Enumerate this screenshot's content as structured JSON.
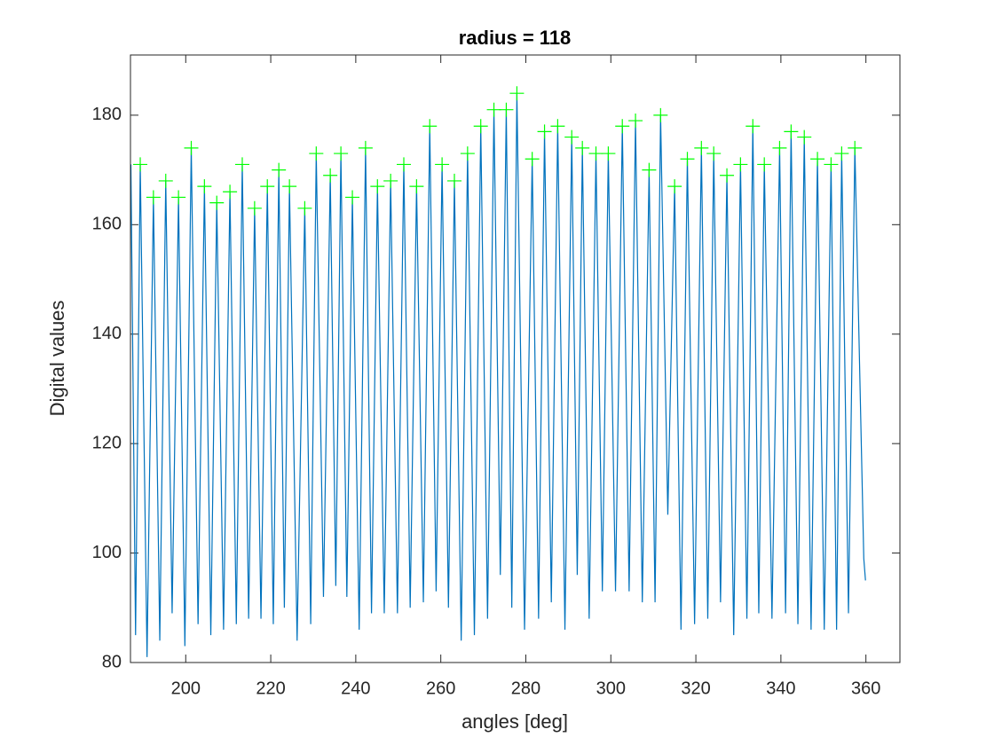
{
  "chart_data": {
    "type": "line",
    "title": "radius = 118",
    "x_label": "angles [deg]",
    "y_label": "Digital values",
    "xlim": [
      187,
      368
    ],
    "ylim": [
      80,
      191
    ],
    "xticks": [
      200,
      220,
      240,
      260,
      280,
      300,
      320,
      340,
      360
    ],
    "yticks": [
      80,
      100,
      120,
      140,
      160,
      180
    ],
    "grid": false,
    "box": true,
    "series": [
      {
        "color": "#0072bd",
        "marker": "none",
        "line_style": "solid",
        "x": [
          187.1,
          188.2,
          189.3,
          190.9,
          192.4,
          193.9,
          195.3,
          196.8,
          198.3,
          199.8,
          201.3,
          202.9,
          204.4,
          205.9,
          207.3,
          208.9,
          210.4,
          211.9,
          213.3,
          214.8,
          216.2,
          217.7,
          219.2,
          220.6,
          221.9,
          223.2,
          224.4,
          226.2,
          228.0,
          229.4,
          230.7,
          232.4,
          234.0,
          235.3,
          236.5,
          237.9,
          239.2,
          240.8,
          242.3,
          243.7,
          245.1,
          246.7,
          248.2,
          249.8,
          251.3,
          252.8,
          254.3,
          255.9,
          257.4,
          258.9,
          260.3,
          261.8,
          263.2,
          264.8,
          266.3,
          267.9,
          269.4,
          271.0,
          272.5,
          274.0,
          275.4,
          276.7,
          277.9,
          279.7,
          281.5,
          283.0,
          284.4,
          286.0,
          287.5,
          289.2,
          290.8,
          292.1,
          293.3,
          294.9,
          296.5,
          298.0,
          299.4,
          301.1,
          302.7,
          304.3,
          305.8,
          307.4,
          309.0,
          310.4,
          311.7,
          313.4,
          315.0,
          316.5,
          318.0,
          319.7,
          321.3,
          322.8,
          324.2,
          325.8,
          327.3,
          328.9,
          330.5,
          332.0,
          333.4,
          334.8,
          336.1,
          337.9,
          339.7,
          341.1,
          342.4,
          344.0,
          345.5,
          347.1,
          348.6,
          350.2,
          351.8,
          353.1,
          354.3,
          355.9,
          357.4,
          359.5,
          359.9
        ],
        "values": [
          171,
          85,
          171,
          81,
          165,
          84,
          168,
          89,
          165,
          83,
          174,
          87,
          167,
          85,
          164,
          86,
          166,
          87,
          171,
          88,
          163,
          88,
          167,
          87,
          170,
          90,
          167,
          84,
          163,
          87,
          173,
          92,
          169,
          94,
          173,
          92,
          165,
          86,
          174,
          89,
          167,
          89,
          168,
          89,
          171,
          90,
          167,
          91,
          178,
          93,
          171,
          90,
          168,
          84,
          173,
          85,
          178,
          88,
          181,
          96,
          181,
          90,
          184,
          86,
          172,
          88,
          177,
          91,
          178,
          86,
          176,
          96,
          174,
          88,
          173,
          93,
          173,
          93,
          178,
          93,
          179,
          91,
          170,
          91,
          180,
          107,
          167,
          86,
          172,
          87,
          174,
          88,
          173,
          91,
          169,
          85,
          171,
          88,
          178,
          89,
          171,
          88,
          174,
          89,
          177,
          87,
          176,
          86,
          172,
          86,
          171,
          86,
          173,
          89,
          174,
          99,
          95
        ]
      },
      {
        "color": "#00ff00",
        "marker": "+",
        "line_style": "none",
        "x": [
          189.3,
          192.4,
          195.3,
          198.3,
          201.3,
          204.4,
          207.3,
          210.4,
          213.3,
          216.2,
          219.2,
          221.9,
          224.4,
          228.0,
          230.7,
          234.0,
          236.5,
          239.2,
          242.3,
          245.1,
          248.2,
          251.3,
          254.3,
          257.4,
          260.3,
          263.2,
          266.3,
          269.4,
          272.5,
          275.4,
          277.9,
          281.5,
          284.4,
          287.5,
          290.8,
          293.3,
          296.5,
          299.4,
          302.7,
          305.8,
          309.0,
          311.7,
          315.0,
          318.0,
          321.3,
          324.2,
          327.3,
          330.5,
          333.4,
          336.1,
          339.7,
          342.4,
          345.5,
          348.6,
          351.8,
          354.3,
          357.4
        ],
        "values": [
          171,
          165,
          168,
          165,
          174,
          167,
          164,
          166,
          171,
          163,
          167,
          170,
          167,
          163,
          173,
          169,
          173,
          165,
          174,
          167,
          168,
          171,
          167,
          178,
          171,
          168,
          173,
          178,
          181,
          181,
          184,
          172,
          177,
          178,
          176,
          174,
          173,
          173,
          178,
          179,
          170,
          180,
          167,
          172,
          174,
          173,
          169,
          171,
          178,
          171,
          174,
          177,
          176,
          172,
          171,
          173,
          174
        ]
      }
    ]
  }
}
